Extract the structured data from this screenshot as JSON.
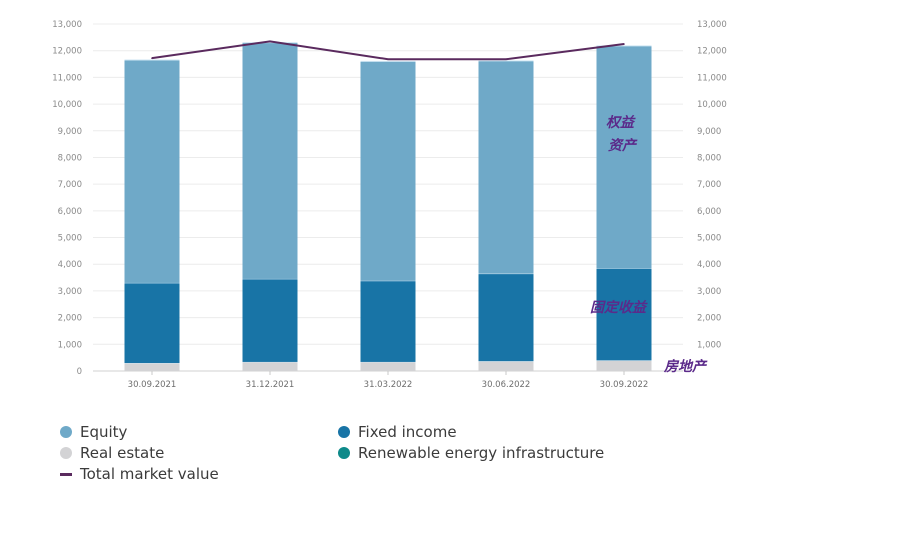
{
  "chart_data": {
    "type": "bar",
    "stacked": true,
    "title": "",
    "xlabel": "",
    "ylabel": "",
    "ylim": [
      0,
      13000
    ],
    "y_ticks": [
      0,
      1000,
      2000,
      3000,
      4000,
      5000,
      6000,
      7000,
      8000,
      9000,
      10000,
      11000,
      12000,
      13000
    ],
    "y_tick_labels": [
      "0",
      "1,000",
      "2,000",
      "3,000",
      "4,000",
      "5,000",
      "6,000",
      "7,000",
      "8,000",
      "9,000",
      "10,000",
      "11,000",
      "12,000",
      "13,000"
    ],
    "right_axis_labels": [
      "1,000",
      "2,000",
      "3,000",
      "4,000",
      "5,000",
      "6,000",
      "7,000",
      "8,000",
      "9,000",
      "10,000",
      "11,000",
      "12,000",
      "13,000"
    ],
    "grid": true,
    "categories": [
      "30.09.2021",
      "31.12.2021",
      "31.03.2022",
      "30.06.2022",
      "30.09.2022"
    ],
    "series": [
      {
        "name": "Real estate",
        "type": "bar",
        "color": "#d3d3d5",
        "values": [
          300,
          340,
          340,
          370,
          400
        ]
      },
      {
        "name": "Fixed income",
        "type": "bar",
        "color": "#1874a6",
        "values": [
          3000,
          3110,
          3040,
          3280,
          3450
        ]
      },
      {
        "name": "Equity",
        "type": "bar",
        "color": "#6fa9c8",
        "values": [
          8350,
          8850,
          8220,
          7970,
          8330
        ]
      },
      {
        "name": "Renewable energy infrastructure",
        "type": "bar",
        "color": "#0e8a8a",
        "values": [
          0,
          0,
          0,
          0,
          0
        ]
      },
      {
        "name": "Total market value",
        "type": "line",
        "color": "#5a2a5e",
        "values": [
          11720,
          12350,
          11680,
          11680,
          12250
        ]
      }
    ],
    "legend": {
      "placement": "bottom",
      "items": [
        {
          "label": "Equity",
          "marker": "dot",
          "color": "#6fa9c8"
        },
        {
          "label": "Fixed income",
          "marker": "dot",
          "color": "#1874a6"
        },
        {
          "label": "Real estate",
          "marker": "dot",
          "color": "#d3d3d5"
        },
        {
          "label": "Renewable energy infrastructure",
          "marker": "dot",
          "color": "#0e8a8a"
        },
        {
          "label": "Total market value",
          "marker": "dash",
          "color": "#5a2a5e"
        }
      ]
    },
    "annotations": [
      {
        "text_line1": "权益",
        "text_line2": "资产",
        "refers_to": "Equity"
      },
      {
        "text": "固定收益",
        "refers_to": "Fixed income"
      },
      {
        "text": "房地产",
        "refers_to": "Real estate"
      }
    ]
  }
}
